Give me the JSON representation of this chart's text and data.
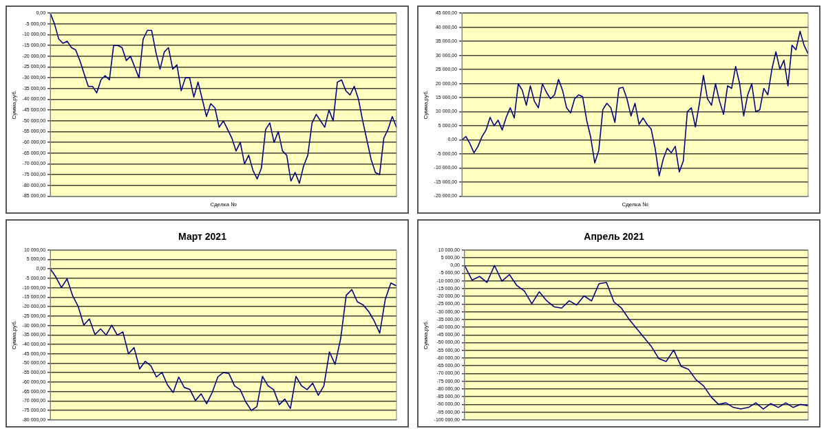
{
  "chart_data": [
    {
      "type": "line",
      "xlabel": "Сделка №",
      "ylabel": "Сумма,руб.",
      "tick_labels": "y",
      "grid": "y",
      "ylim": [
        -85000,
        0
      ],
      "categories": [
        null,
        null,
        null,
        null,
        null,
        null,
        null,
        null,
        null,
        null,
        null,
        null,
        null,
        null,
        null,
        null,
        null,
        null,
        null,
        null,
        null,
        null,
        null,
        null,
        null,
        null,
        null,
        null,
        null,
        null,
        null,
        null,
        null,
        null,
        null,
        null,
        null,
        null,
        null,
        null,
        null,
        null,
        null,
        null,
        null,
        null,
        null,
        null,
        null,
        null,
        null,
        null,
        null,
        null,
        null,
        null,
        null,
        null,
        null,
        null,
        null,
        null,
        null,
        null,
        null,
        null,
        null,
        null,
        null,
        null,
        null,
        null,
        null,
        null,
        null,
        null,
        null,
        null,
        null,
        null,
        null,
        null,
        null
      ],
      "yticks": [
        {
          "value": 0,
          "label": "0,00"
        },
        {
          "value": -5000,
          "label": "-5 000,00"
        },
        {
          "value": -10000,
          "label": "-10 000,00"
        },
        {
          "value": -15000,
          "label": "-15 000,00"
        },
        {
          "value": -20000,
          "label": "-20 000,00"
        },
        {
          "value": -25000,
          "label": "-25 000,00"
        },
        {
          "value": -30000,
          "label": "-30 000,00"
        },
        {
          "value": -35000,
          "label": "-35 000,00"
        },
        {
          "value": -40000,
          "label": "-40 000,00"
        },
        {
          "value": -45000,
          "label": "-45 000,00"
        },
        {
          "value": -50000,
          "label": "-50 000,00"
        },
        {
          "value": -55000,
          "label": "-55 000,00"
        },
        {
          "value": -60000,
          "label": "-60 000,00"
        },
        {
          "value": -65000,
          "label": "-65 000,00"
        },
        {
          "value": -70000,
          "label": "-70 000,00"
        },
        {
          "value": -75000,
          "label": "-75 000,00"
        },
        {
          "value": -80000,
          "label": "-80 000,00"
        },
        {
          "value": -85000,
          "label": "-85 000,00"
        }
      ],
      "series": [
        {
          "color": "#000080",
          "values": [
            0,
            -5000,
            -12000,
            -14000,
            -13000,
            -16000,
            -17000,
            -22000,
            -28000,
            -34000,
            -34000,
            -37000,
            -31000,
            -29000,
            -31000,
            -15000,
            -15000,
            -16000,
            -22000,
            -20000,
            -25000,
            -30000,
            -12000,
            -8000,
            -8000,
            -18000,
            -26000,
            -18000,
            -16000,
            -26000,
            -24000,
            -36000,
            -30000,
            -30000,
            -39000,
            -32000,
            -40000,
            -48000,
            -42000,
            -44000,
            -53000,
            -50000,
            -54000,
            -58000,
            -64000,
            -60000,
            -70000,
            -66000,
            -73000,
            -77000,
            -72000,
            -54000,
            -51000,
            -60000,
            -55000,
            -64000,
            -66000,
            -78000,
            -74000,
            -79000,
            -71000,
            -66000,
            -51000,
            -47000,
            -50000,
            -53000,
            -45000,
            -50000,
            -32000,
            -31000,
            -36000,
            -38000,
            -34000,
            -40000,
            -50000,
            -59000,
            -68000,
            -74000,
            -75000,
            -58000,
            -54000,
            -48000,
            -53000
          ]
        }
      ]
    },
    {
      "type": "line",
      "xlabel": "Сделка №",
      "ylabel": "Сумма,руб.",
      "tick_labels": "y",
      "grid": "y",
      "ylim": [
        -20000,
        45000
      ],
      "categories": [
        null,
        null,
        null,
        null,
        null,
        null,
        null,
        null,
        null,
        null,
        null,
        null,
        null,
        null,
        null,
        null,
        null,
        null,
        null,
        null,
        null,
        null,
        null,
        null,
        null,
        null,
        null,
        null,
        null,
        null,
        null,
        null,
        null,
        null,
        null,
        null,
        null,
        null,
        null,
        null,
        null,
        null,
        null,
        null,
        null,
        null,
        null,
        null,
        null,
        null,
        null,
        null,
        null,
        null,
        null,
        null,
        null,
        null,
        null,
        null,
        null,
        null,
        null,
        null,
        null,
        null,
        null,
        null,
        null,
        null,
        null,
        null,
        null,
        null,
        null,
        null,
        null,
        null,
        null,
        null,
        null,
        null,
        null,
        null,
        null,
        null,
        null
      ],
      "yticks": [
        {
          "value": 45000,
          "label": "45 000,00"
        },
        {
          "value": 40000,
          "label": "40 000,00"
        },
        {
          "value": 35000,
          "label": "35 000,00"
        },
        {
          "value": 30000,
          "label": "30 000,00"
        },
        {
          "value": 25000,
          "label": "25 000,00"
        },
        {
          "value": 20000,
          "label": "20 000,00"
        },
        {
          "value": 15000,
          "label": "15 000,00"
        },
        {
          "value": 10000,
          "label": "10 000,00"
        },
        {
          "value": 5000,
          "label": "5 000,00"
        },
        {
          "value": 0,
          "label": "0,00"
        },
        {
          "value": -5000,
          "label": "-5 000,00"
        },
        {
          "value": -10000,
          "label": "-10 000,00"
        },
        {
          "value": -15000,
          "label": "-15 000,00"
        },
        {
          "value": -20000,
          "label": "-20 000,00"
        }
      ],
      "series": [
        {
          "color": "#000080",
          "values": [
            0,
            1200,
            -1400,
            -4600,
            -2300,
            1200,
            3500,
            8000,
            5000,
            7000,
            3500,
            8000,
            11400,
            7800,
            19900,
            17600,
            12300,
            19200,
            13700,
            11400,
            19900,
            16900,
            14600,
            16000,
            21500,
            17600,
            11400,
            9600,
            14600,
            16000,
            15300,
            6900,
            900,
            -8200,
            -3700,
            10700,
            13000,
            11400,
            6200,
            18300,
            18700,
            14600,
            8500,
            13000,
            5500,
            7800,
            5500,
            3900,
            -3000,
            -12800,
            -6900,
            -3000,
            -4600,
            -2300,
            -11400,
            -7500,
            10000,
            11400,
            4600,
            13000,
            22900,
            14600,
            12300,
            19900,
            13700,
            9100,
            19200,
            18300,
            26100,
            19900,
            8500,
            16000,
            19900,
            10000,
            10700,
            18300,
            16000,
            25100,
            31300,
            25100,
            28300,
            19200,
            33600,
            32000,
            38600,
            33600,
            30600
          ]
        }
      ]
    },
    {
      "type": "line",
      "title": "Март 2021",
      "ylabel": "Сумма,руб.",
      "tick_labels": "y",
      "grid": "y",
      "ylim": [
        -80000,
        10000
      ],
      "categories": [
        null,
        null,
        null,
        null,
        null,
        null,
        null,
        null,
        null,
        null,
        null,
        null,
        null,
        null,
        null,
        null,
        null,
        null,
        null,
        null,
        null,
        null,
        null,
        null,
        null,
        null,
        null,
        null,
        null,
        null,
        null,
        null,
        null,
        null,
        null,
        null,
        null,
        null,
        null,
        null,
        null,
        null,
        null,
        null,
        null,
        null,
        null,
        null,
        null,
        null,
        null,
        null,
        null,
        null,
        null,
        null,
        null,
        null,
        null,
        null,
        null,
        null,
        null
      ],
      "yticks": [
        {
          "value": 10000,
          "label": "10 000,00"
        },
        {
          "value": 5000,
          "label": "5 000,00"
        },
        {
          "value": 0,
          "label": "0,00"
        },
        {
          "value": -5000,
          "label": "-5 000,00"
        },
        {
          "value": -10000,
          "label": "-10 000,00"
        },
        {
          "value": -15000,
          "label": "-15 000,00"
        },
        {
          "value": -20000,
          "label": "-20 000,00"
        },
        {
          "value": -25000,
          "label": "-25 000,00"
        },
        {
          "value": -30000,
          "label": "-30 000,00"
        },
        {
          "value": -35000,
          "label": "-35 000,00"
        },
        {
          "value": -40000,
          "label": "-40 000,00"
        },
        {
          "value": -45000,
          "label": "-45 000,00"
        },
        {
          "value": -50000,
          "label": "-50 000,00"
        },
        {
          "value": -55000,
          "label": "-55 000,00"
        },
        {
          "value": -60000,
          "label": "-60 000,00"
        },
        {
          "value": -65000,
          "label": "-65 000,00"
        },
        {
          "value": -70000,
          "label": "-70 000,00"
        },
        {
          "value": -75000,
          "label": "-75 000,00"
        },
        {
          "value": -80000,
          "label": "-80 000,00"
        }
      ],
      "series": [
        {
          "color": "#000080",
          "values": [
            0,
            -4300,
            -9900,
            -5300,
            -14200,
            -19900,
            -29800,
            -26500,
            -34800,
            -31800,
            -35100,
            -29800,
            -35100,
            -33400,
            -45000,
            -41700,
            -53000,
            -49000,
            -51300,
            -57300,
            -54900,
            -61600,
            -65500,
            -57300,
            -62900,
            -63900,
            -69800,
            -66200,
            -71500,
            -65500,
            -57300,
            -54900,
            -55500,
            -62000,
            -64000,
            -70500,
            -75000,
            -73000,
            -57000,
            -62000,
            -64000,
            -72000,
            -69000,
            -74000,
            -57000,
            -62000,
            -64000,
            -60600,
            -67000,
            -62000,
            -44000,
            -50600,
            -37000,
            -14000,
            -11000,
            -17500,
            -19000,
            -22500,
            -27500,
            -34000,
            -16000,
            -7500,
            -9000
          ]
        }
      ]
    },
    {
      "type": "line",
      "title": "Апрель 2021",
      "ylabel": "Сумма,руб.",
      "tick_labels": "y",
      "grid": "y",
      "ylim": [
        -100000,
        10000
      ],
      "categories": [
        null,
        null,
        null,
        null,
        null,
        null,
        null,
        null,
        null,
        null,
        null,
        null,
        null,
        null,
        null,
        null,
        null,
        null,
        null,
        null,
        null,
        null,
        null,
        null,
        null,
        null,
        null,
        null,
        null,
        null,
        null,
        null,
        null,
        null,
        null,
        null,
        null,
        null,
        null,
        null,
        null,
        null,
        null,
        null,
        null,
        null,
        null
      ],
      "yticks": [
        {
          "value": 10000,
          "label": "10 000,00"
        },
        {
          "value": 5000,
          "label": "5 000,00"
        },
        {
          "value": 0,
          "label": "0,00"
        },
        {
          "value": -5000,
          "label": "-5 000,00"
        },
        {
          "value": -10000,
          "label": "-10 000,00"
        },
        {
          "value": -15000,
          "label": "-15 000,00"
        },
        {
          "value": -20000,
          "label": "-20 000,00"
        },
        {
          "value": -25000,
          "label": "-25 000,00"
        },
        {
          "value": -30000,
          "label": "-30 000,00"
        },
        {
          "value": -35000,
          "label": "-35 000,00"
        },
        {
          "value": -40000,
          "label": "-40 000,00"
        },
        {
          "value": -45000,
          "label": "-45 000,00"
        },
        {
          "value": -50000,
          "label": "-50 000,00"
        },
        {
          "value": -55000,
          "label": "-55 000,00"
        },
        {
          "value": -60000,
          "label": "-60 000,00"
        },
        {
          "value": -65000,
          "label": "-65 000,00"
        },
        {
          "value": -70000,
          "label": "-70 000,00"
        },
        {
          "value": -75000,
          "label": "-75 000,00"
        },
        {
          "value": -80000,
          "label": "-80 000,00"
        },
        {
          "value": -85000,
          "label": "-85 000,00"
        },
        {
          "value": -90000,
          "label": "-90 000,00"
        },
        {
          "value": -95000,
          "label": "-95 000,00"
        },
        {
          "value": -100000,
          "label": "-100 000,00"
        }
      ],
      "series": [
        {
          "color": "#000080",
          "values": [
            0,
            -9500,
            -7100,
            -11000,
            0,
            -10200,
            -5900,
            -13000,
            -16500,
            -24800,
            -17000,
            -22900,
            -26800,
            -27600,
            -22900,
            -25600,
            -19700,
            -23000,
            -11800,
            -11000,
            -23600,
            -27600,
            -34700,
            -40600,
            -46500,
            -52400,
            -60300,
            -62200,
            -54800,
            -65400,
            -67400,
            -74100,
            -78000,
            -85100,
            -90000,
            -89000,
            -92000,
            -93000,
            -92000,
            -89000,
            -93000,
            -89500,
            -92000,
            -89000,
            -92000,
            -90000,
            -91000
          ]
        }
      ]
    }
  ]
}
